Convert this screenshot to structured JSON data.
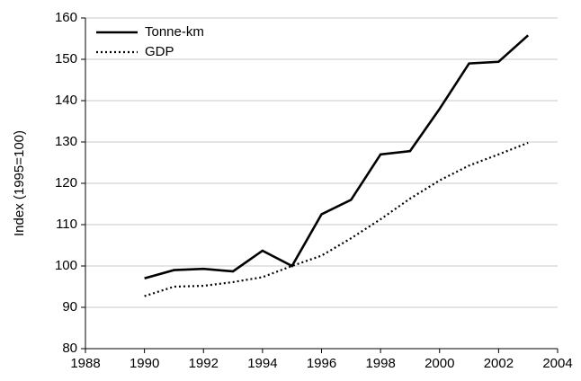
{
  "chart_data": {
    "type": "line",
    "y_label": "Index (1995=100)",
    "x": [
      1990,
      1991,
      1992,
      1993,
      1994,
      1995,
      1996,
      1997,
      1998,
      1999,
      2000,
      2001,
      2002,
      2003
    ],
    "series": [
      {
        "name": "Tonne-km",
        "color": "#000000",
        "style": "solid",
        "values": [
          97,
          99,
          99.3,
          98.7,
          103.7,
          100,
          112.5,
          116,
          127,
          127.8,
          138,
          149,
          149.4,
          155.8
        ]
      },
      {
        "name": "GDP",
        "color": "#000000",
        "style": "dotted",
        "values": [
          92.7,
          95,
          95.2,
          96.1,
          97.3,
          100,
          102.5,
          106.7,
          111.3,
          116.3,
          120.7,
          124.3,
          127,
          129.8
        ]
      }
    ],
    "xlim": [
      1988,
      2004
    ],
    "xticks": [
      1988,
      1990,
      1992,
      1994,
      1996,
      1998,
      2000,
      2002,
      2004
    ],
    "ylim": [
      80,
      160
    ],
    "yticks": [
      80,
      90,
      100,
      110,
      120,
      130,
      140,
      150,
      160
    ],
    "grid": true,
    "legend": "upper left"
  }
}
